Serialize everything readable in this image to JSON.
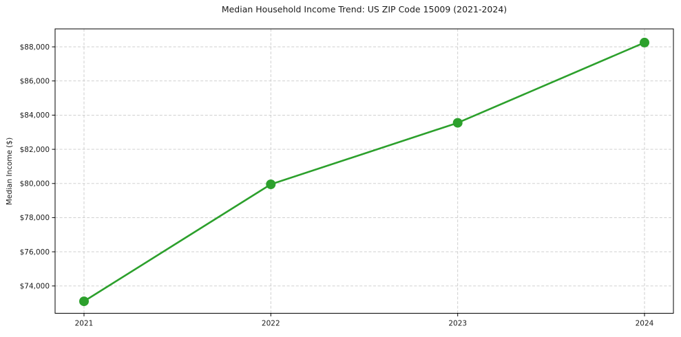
{
  "chart_data": {
    "type": "line",
    "title": "Median Household Income Trend: US ZIP Code 15009 (2021-2024)",
    "xlabel": "",
    "ylabel": "Median Income ($)",
    "categories": [
      "2021",
      "2022",
      "2023",
      "2024"
    ],
    "series": [
      {
        "name": "Median Household Income",
        "values": [
          73100,
          79950,
          83550,
          88250
        ]
      }
    ],
    "ylim": [
      72400,
      89050
    ],
    "yticks": [
      74000,
      76000,
      78000,
      80000,
      82000,
      84000,
      86000,
      88000
    ],
    "ytick_labels": [
      "$74,000",
      "$76,000",
      "$78,000",
      "$80,000",
      "$82,000",
      "$84,000",
      "$86,000",
      "$88,000"
    ],
    "grid": "both-dashed",
    "legend": "none",
    "colors": {
      "line": "#2ca02c",
      "marker": "#2ca02c",
      "grid": "#c9c9c9",
      "spine": "#000000",
      "text": "#1a1a1a",
      "background": "#ffffff"
    }
  }
}
